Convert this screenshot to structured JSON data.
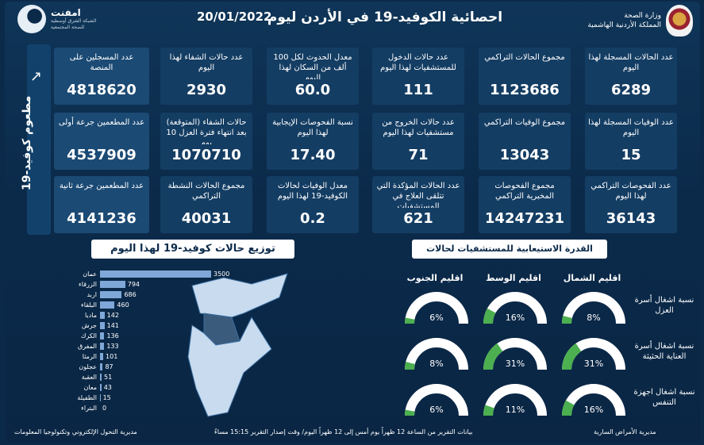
{
  "header": {
    "title": "احصائية الكوفيد-19 في الأردن ليوم",
    "date": "20/01/2022",
    "moh_line1": "وزارة الصحة",
    "moh_line2": "المملكة الأردنية الهاشمية",
    "imfit_name": "امفنت",
    "imfit_sub": "الشبكة الشرق أوسطية للصحة المجتمعية"
  },
  "vaccine": {
    "label": "مطعوم كوفيد-19",
    "tiles": [
      {
        "label": "عدد المسجلين على المنصة",
        "value": "4818620"
      },
      {
        "label": "عدد المطعمين جرعة أولى",
        "value": "4537909"
      },
      {
        "label": "عدد المطعمين جرعة ثانية",
        "value": "4141236"
      }
    ]
  },
  "stats": [
    {
      "label": "عدد الحالات المسجلة لهذا اليوم",
      "value": "6289"
    },
    {
      "label": "مجموع الحالات التراكمي",
      "value": "1123686"
    },
    {
      "label": "عدد حالات الدخول للمستشفيات لهذا اليوم",
      "value": "111"
    },
    {
      "label": "معدل الحدوث لكل 100 ألف من السكان لهذا اليوم",
      "value": "60.0"
    },
    {
      "label": "عدد حالات الشفاء لهذا اليوم",
      "value": "2930"
    },
    {
      "label": "عدد الوفيات المسجلة لهذا اليوم",
      "value": "15"
    },
    {
      "label": "مجموع الوفيات التراكمي",
      "value": "13043"
    },
    {
      "label": "عدد حالات الخروج من مستشفيات لهذا اليوم",
      "value": "71"
    },
    {
      "label": "نسبة الفحوصات الإيجابية لهذا اليوم",
      "value": "17.40"
    },
    {
      "label": "حالات الشفاء (المتوقعة) بعد انتهاء فترة العزل 10 يوم",
      "value": "1070710"
    },
    {
      "label": "عدد الفحوصات التراكمي لهذا اليوم",
      "value": "36143"
    },
    {
      "label": "مجموع الفحوصات المخبرية التراكمي",
      "value": "14247231"
    },
    {
      "label": "عدد الحالات المؤكدة التي تتلقى العلاج في المستشفيات",
      "value": "621"
    },
    {
      "label": "معدل الوفيات لحالات الكوفيد-19 لهذا اليوم",
      "value": "0.2"
    },
    {
      "label": "مجموع الحالات النشطة التراكمي",
      "value": "40031"
    }
  ],
  "distribution": {
    "title": "توزيع حالات كوفيد-19 لهذا اليوم",
    "governorates": [
      {
        "name": "عمان",
        "value": 3500
      },
      {
        "name": "الزرقاء",
        "value": 794
      },
      {
        "name": "اربد",
        "value": 686
      },
      {
        "name": "البلقاء",
        "value": 460
      },
      {
        "name": "مادبا",
        "value": 142
      },
      {
        "name": "جرش",
        "value": 141
      },
      {
        "name": "الكرك",
        "value": 136
      },
      {
        "name": "المفرق",
        "value": 133
      },
      {
        "name": "الرمثا",
        "value": 101
      },
      {
        "name": "عجلون",
        "value": 87
      },
      {
        "name": "العقبة",
        "value": 51
      },
      {
        "name": "معان",
        "value": 43
      },
      {
        "name": "الطفيلة",
        "value": 15
      },
      {
        "name": "البتراء",
        "value": 0
      }
    ]
  },
  "capacity": {
    "title": "القدرة الاستيعابية للمستشفيات لحالات كوفيد-19",
    "regions": [
      "اقليم الشمال",
      "اقليم الوسط",
      "اقليم الجنوب"
    ],
    "rows": [
      {
        "label": "نسبة اشغال أسرة العزل",
        "values": [
          "8%",
          "16%",
          "6%"
        ]
      },
      {
        "label": "نسبة اشغال أسرة العناية الحثيثة",
        "values": [
          "31%",
          "31%",
          "8%"
        ]
      },
      {
        "label": "نسبة اشغال اجهزة التنفس",
        "values": [
          "16%",
          "11%",
          "6%"
        ]
      }
    ]
  },
  "footer": {
    "left": "مديرية التحول الإلكتروني وتكنولوجيا المعلومات",
    "center": "بيانات التقرير من الساعة 12 ظهراً يوم أمس إلى 12 ظهراً اليوم/ وقت إصدار التقرير 15:15 مساءً",
    "right": "مديرية الأمراض السارية"
  },
  "colors": {
    "bg": "#0b2a4a",
    "tile": "#143d63",
    "bar": "#7fa8d8",
    "gauge_fill": "#4caf50",
    "gauge_track": "#ffffff"
  }
}
